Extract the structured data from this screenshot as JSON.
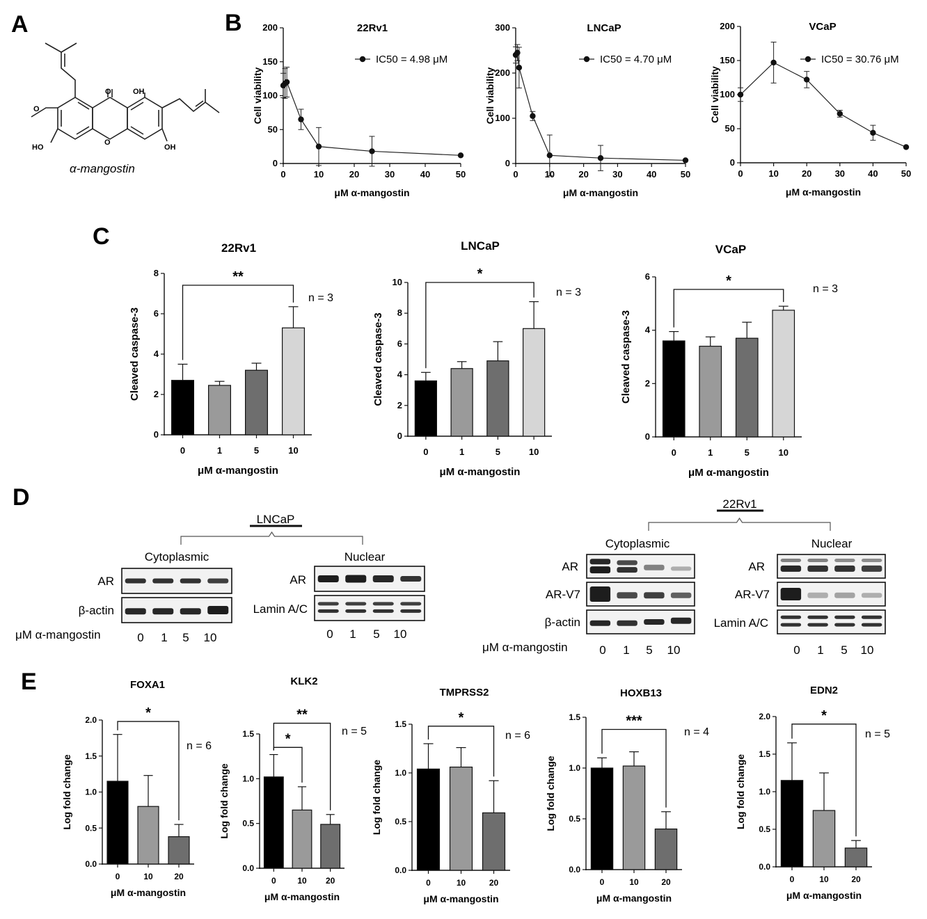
{
  "panels": {
    "A": "A",
    "B": "B",
    "C": "C",
    "D": "D",
    "E": "E"
  },
  "compound": {
    "name": "α-mangostin",
    "atoms": [
      "O",
      "OH",
      "HO",
      "O",
      "OH",
      "O"
    ]
  },
  "chart_data": [
    {
      "id": "b1",
      "type": "line",
      "title": "22Rv1",
      "xlabel": "μM α-mangostin",
      "ylabel": "Cell viability",
      "legend": "IC50 = 4.98 μM",
      "xlim": [
        0,
        50
      ],
      "ylim": [
        0,
        200
      ],
      "xticks": [
        0,
        10,
        20,
        30,
        40,
        50
      ],
      "yticks": [
        0,
        50,
        100,
        150,
        200
      ],
      "x": [
        0,
        0.5,
        1,
        5,
        10,
        25,
        50
      ],
      "y": [
        115,
        118,
        120,
        65,
        25,
        18,
        12
      ],
      "err": [
        18,
        22,
        22,
        15,
        28,
        22,
        0
      ]
    },
    {
      "id": "b2",
      "type": "line",
      "title": "LNCaP",
      "xlabel": "μM α-mangostin",
      "ylabel": "Cell viability",
      "legend": "IC50 = 4.70 μM",
      "xlim": [
        0,
        50
      ],
      "ylim": [
        0,
        300
      ],
      "xticks": [
        0,
        10,
        20,
        30,
        40,
        50
      ],
      "yticks": [
        0,
        100,
        200,
        300
      ],
      "x": [
        0,
        0.5,
        1,
        5,
        10,
        25,
        50
      ],
      "y": [
        240,
        245,
        212,
        105,
        18,
        12,
        7
      ],
      "err": [
        18,
        18,
        45,
        10,
        45,
        28,
        0
      ]
    },
    {
      "id": "b3",
      "type": "line",
      "title": "VCaP",
      "xlabel": "μM α-mangostin",
      "ylabel": "Cell viability",
      "legend": "IC50 = 30.76 μM",
      "xlim": [
        0,
        50
      ],
      "ylim": [
        0,
        200
      ],
      "xticks": [
        0,
        10,
        20,
        30,
        40,
        50
      ],
      "yticks": [
        0,
        50,
        100,
        150,
        200
      ],
      "x": [
        0,
        10,
        20,
        30,
        40,
        50
      ],
      "y": [
        100,
        147,
        122,
        72,
        44,
        23
      ],
      "err": [
        10,
        30,
        12,
        5,
        11,
        0
      ]
    },
    {
      "id": "c1",
      "type": "bar",
      "title": "22Rv1",
      "xlabel": "μM α-mangostin",
      "ylabel": "Cleaved caspase-3",
      "categories": [
        "0",
        "1",
        "5",
        "10"
      ],
      "values": [
        2.7,
        2.45,
        3.2,
        5.3
      ],
      "err": [
        0.8,
        0.2,
        0.35,
        1.05
      ],
      "ylim": [
        0,
        8
      ],
      "yticks": [
        0,
        2,
        4,
        6,
        8
      ],
      "sig": "**",
      "sig_from": 0,
      "sig_to": 3,
      "note": "n = 3"
    },
    {
      "id": "c2",
      "type": "bar",
      "title": "LNCaP",
      "xlabel": "μM α-mangostin",
      "ylabel": "Cleaved caspase-3",
      "categories": [
        "0",
        "1",
        "5",
        "10"
      ],
      "values": [
        3.6,
        4.4,
        4.9,
        7.0
      ],
      "err": [
        0.55,
        0.45,
        1.25,
        1.75
      ],
      "ylim": [
        0,
        10
      ],
      "yticks": [
        0,
        2,
        4,
        6,
        8,
        10
      ],
      "sig": "*",
      "sig_from": 0,
      "sig_to": 3,
      "note": "n = 3"
    },
    {
      "id": "c3",
      "type": "bar",
      "title": "VCaP",
      "xlabel": "μM α-mangostin",
      "ylabel": "Cleaved caspase-3",
      "categories": [
        "0",
        "1",
        "5",
        "10"
      ],
      "values": [
        3.6,
        3.4,
        3.7,
        4.75
      ],
      "err": [
        0.35,
        0.35,
        0.6,
        0.15
      ],
      "ylim": [
        0,
        6
      ],
      "yticks": [
        0,
        2,
        4,
        6
      ],
      "sig": "*",
      "sig_from": 0,
      "sig_to": 3,
      "note": "n = 3"
    },
    {
      "id": "e1",
      "type": "bar",
      "title": "FOXA1",
      "xlabel": "μM α-mangostin",
      "ylabel": "Log fold change",
      "categories": [
        "0",
        "10",
        "20"
      ],
      "values": [
        1.15,
        0.8,
        0.38
      ],
      "err": [
        0.65,
        0.43,
        0.17
      ],
      "ylim": [
        0,
        2.0
      ],
      "yticks": [
        "0.0",
        "0.5",
        "1.0",
        "1.5",
        "2.0"
      ],
      "sigs": [
        {
          "label": "*",
          "from": 0,
          "to": 2,
          "level": 1.98
        }
      ],
      "note": "n = 6"
    },
    {
      "id": "e2",
      "type": "bar",
      "title": "KLK2",
      "xlabel": "μM α-mangostin",
      "ylabel": "Log fold change",
      "categories": [
        "0",
        "10",
        "20"
      ],
      "values": [
        1.02,
        0.65,
        0.49
      ],
      "err": [
        0.25,
        0.26,
        0.11
      ],
      "ylim": [
        0,
        1.5
      ],
      "yticks": [
        "0.0",
        "0.5",
        "1.0",
        "1.5"
      ],
      "sigs": [
        {
          "label": "*",
          "from": 0,
          "to": 1,
          "level": 1.35
        },
        {
          "label": "**",
          "from": 0,
          "to": 2,
          "level": 1.62
        }
      ],
      "note": "n = 5"
    },
    {
      "id": "e3",
      "type": "bar",
      "title": "TMPRSS2",
      "xlabel": "μM α-mangostin",
      "ylabel": "Log fold change",
      "categories": [
        "0",
        "10",
        "20"
      ],
      "values": [
        1.04,
        1.06,
        0.59
      ],
      "err": [
        0.26,
        0.2,
        0.33
      ],
      "ylim": [
        0,
        1.5
      ],
      "yticks": [
        "0.0",
        "0.5",
        "1.0",
        "1.5"
      ],
      "sigs": [
        {
          "label": "*",
          "from": 0,
          "to": 2,
          "level": 1.48
        }
      ],
      "note": "n = 6"
    },
    {
      "id": "e4",
      "type": "bar",
      "title": "HOXB13",
      "xlabel": "μM α-mangostin",
      "ylabel": "Log fold change",
      "categories": [
        "0",
        "10",
        "20"
      ],
      "values": [
        1.0,
        1.02,
        0.4
      ],
      "err": [
        0.1,
        0.14,
        0.17
      ],
      "ylim": [
        0,
        1.5
      ],
      "yticks": [
        "0.0",
        "0.5",
        "1.0",
        "1.5"
      ],
      "sigs": [
        {
          "label": "***",
          "from": 0,
          "to": 2,
          "level": 1.38
        }
      ],
      "note": "n = 4"
    },
    {
      "id": "e5",
      "type": "bar",
      "title": "EDN2",
      "xlabel": "μM α-mangostin",
      "ylabel": "Log fold change",
      "categories": [
        "0",
        "10",
        "20"
      ],
      "values": [
        1.15,
        0.75,
        0.25
      ],
      "err": [
        0.5,
        0.5,
        0.1
      ],
      "ylim": [
        0,
        2.0
      ],
      "yticks": [
        "0.0",
        "0.5",
        "1.0",
        "1.5",
        "2.0"
      ],
      "sigs": [
        {
          "label": "*",
          "from": 0,
          "to": 2,
          "level": 1.9
        }
      ],
      "note": "n = 5"
    }
  ],
  "bar_colors": [
    "#000000",
    "#9a9a9a",
    "#6e6e6e",
    "#d6d6d6"
  ],
  "bar_colors_e": [
    "#000000",
    "#9a9a9a",
    "#6e6e6e"
  ],
  "western": {
    "lncap": {
      "title": "LNCaP",
      "fractions": [
        "Cytoplasmic",
        "Nuclear"
      ],
      "cyto_rows": [
        "AR",
        "β-actin"
      ],
      "nuc_rows": [
        "AR",
        "Lamin A/C"
      ],
      "dose_label": "μM α-mangostin",
      "doses": [
        "0",
        "1",
        "5",
        "10"
      ]
    },
    "rv1": {
      "title": "22Rv1",
      "fractions": [
        "Cytoplasmic",
        "Nuclear"
      ],
      "cyto_rows": [
        "AR",
        "AR-V7",
        "β-actin"
      ],
      "nuc_rows": [
        "AR",
        "AR-V7",
        "Lamin A/C"
      ],
      "dose_label": "μM α-mangostin",
      "doses": [
        "0",
        "1",
        "5",
        "10"
      ]
    }
  }
}
